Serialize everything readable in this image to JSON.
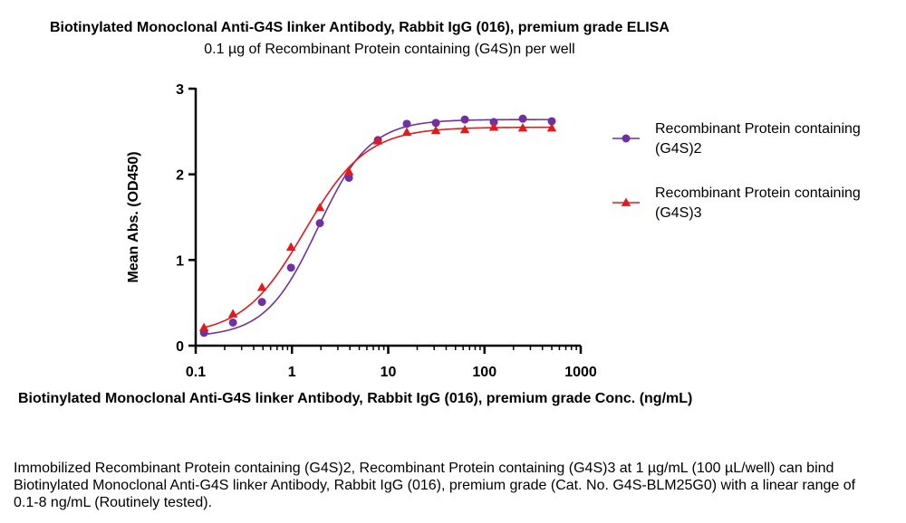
{
  "chart_data": {
    "type": "scatter",
    "title": "Biotinylated Monoclonal Anti-G4S linker Antibody, Rabbit IgG (016), premium grade ELISA",
    "subtitle": "0.1 µg of Recombinant Protein containing (G4S)n per well",
    "xlabel": "Biotinylated Monoclonal Anti-G4S linker Antibody, Rabbit IgG (016), premium grade Conc. (ng/mL)",
    "ylabel": "Mean Abs. (OD450)",
    "x_scale": "log",
    "xlim": [
      0.1,
      1000
    ],
    "ylim": [
      0,
      3
    ],
    "x_ticks": [
      "0.1",
      "1",
      "10",
      "100",
      "1000"
    ],
    "y_ticks": [
      "0",
      "1",
      "2",
      "3"
    ],
    "legend_position": "right",
    "series": [
      {
        "name": "Recombinant Protein containing (G4S)2",
        "color": "#7030A0",
        "marker": "circle",
        "x": [
          0.122,
          0.244,
          0.488,
          0.977,
          1.95,
          3.91,
          7.81,
          15.6,
          31.25,
          62.5,
          125,
          250,
          500
        ],
        "y": [
          0.15,
          0.27,
          0.51,
          0.91,
          1.43,
          1.96,
          2.4,
          2.59,
          2.6,
          2.64,
          2.61,
          2.65,
          2.62
        ],
        "curve": {
          "bottom": 0.1,
          "top": 2.64,
          "ec50": 1.85,
          "hill": 1.6
        }
      },
      {
        "name": "Recombinant Protein containing (G4S)3",
        "color": "#E31A1C",
        "marker": "triangle",
        "x": [
          0.122,
          0.244,
          0.488,
          0.977,
          1.95,
          3.91,
          7.81,
          15.6,
          31.25,
          62.5,
          125,
          250,
          500
        ],
        "y": [
          0.21,
          0.37,
          0.68,
          1.15,
          1.61,
          2.03,
          2.39,
          2.49,
          2.51,
          2.52,
          2.55,
          2.54,
          2.54
        ],
        "curve": {
          "bottom": 0.12,
          "top": 2.55,
          "ec50": 1.35,
          "hill": 1.35
        }
      }
    ]
  },
  "caption": "Immobilized Recombinant Protein containing (G4S)2, Recombinant Protein containing (G4S)3 at 1 µg/mL (100 µL/well) can bind Biotinylated Monoclonal Anti-G4S linker Antibody, Rabbit IgG (016), premium grade (Cat. No. G4S-BLM25G0) with a linear range of 0.1-8 ng/mL (Routinely tested)."
}
